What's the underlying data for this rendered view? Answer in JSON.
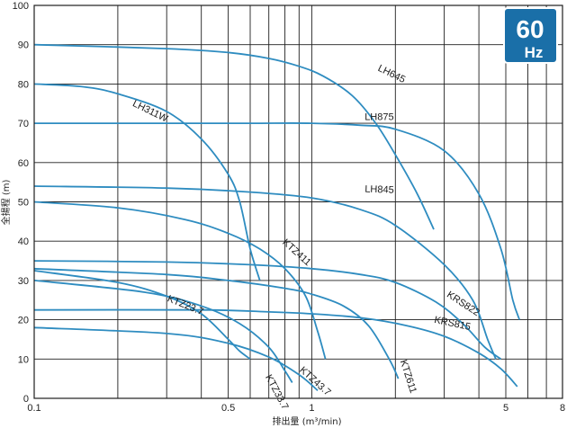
{
  "chart_data": {
    "type": "line",
    "title": "",
    "xlabel": "排出量 (m³/min)",
    "ylabel": "全揚程 (m)",
    "xscale": "log",
    "xlim": [
      0.1,
      8
    ],
    "ylim": [
      0,
      100
    ],
    "x_tick_labels": [
      {
        "value": 0.1,
        "label": "0.1"
      },
      {
        "value": 0.5,
        "label": "0.5"
      },
      {
        "value": 1,
        "label": "1"
      },
      {
        "value": 5,
        "label": "5"
      },
      {
        "value": 8,
        "label": "8"
      }
    ],
    "x_gridlines": [
      0.1,
      0.2,
      0.3,
      0.4,
      0.5,
      0.6,
      0.7,
      0.8,
      0.9,
      1,
      2,
      3,
      4,
      5,
      6,
      7,
      8
    ],
    "y_ticks": [
      0,
      10,
      20,
      30,
      40,
      50,
      60,
      70,
      80,
      90,
      100
    ],
    "grid": true,
    "badge": {
      "value": "60",
      "unit": "Hz"
    },
    "colors": {
      "curve": "#2e8cc0",
      "grid": "#1e1e1e",
      "badge": "#1a6fa8"
    },
    "series": [
      {
        "name": "LH645",
        "points": [
          [
            0.1,
            90
          ],
          [
            0.3,
            89
          ],
          [
            0.5,
            88
          ],
          [
            0.7,
            86.5
          ],
          [
            0.9,
            84.5
          ],
          [
            1.1,
            82
          ],
          [
            1.4,
            77
          ],
          [
            1.7,
            70
          ],
          [
            2.0,
            62
          ],
          [
            2.4,
            52
          ],
          [
            2.75,
            43
          ]
        ]
      },
      {
        "name": "LH311W",
        "points": [
          [
            0.1,
            80
          ],
          [
            0.15,
            79.3
          ],
          [
            0.2,
            77.5
          ],
          [
            0.3,
            73
          ],
          [
            0.4,
            66
          ],
          [
            0.5,
            57
          ],
          [
            0.55,
            50
          ],
          [
            0.6,
            38
          ],
          [
            0.65,
            30
          ]
        ]
      },
      {
        "name": "LH875",
        "points": [
          [
            0.1,
            70
          ],
          [
            0.3,
            70
          ],
          [
            0.6,
            70
          ],
          [
            1.0,
            70
          ],
          [
            1.5,
            69.5
          ],
          [
            2,
            68.5
          ],
          [
            3,
            63
          ],
          [
            4,
            52
          ],
          [
            4.8,
            38
          ],
          [
            5.3,
            25
          ],
          [
            5.6,
            20
          ]
        ]
      },
      {
        "name": "LH845",
        "points": [
          [
            0.1,
            54
          ],
          [
            0.3,
            53.5
          ],
          [
            0.6,
            52.5
          ],
          [
            1,
            51
          ],
          [
            1.5,
            48
          ],
          [
            2,
            44
          ],
          [
            3,
            34
          ],
          [
            3.8,
            25
          ],
          [
            4.3,
            15
          ],
          [
            4.6,
            10
          ]
        ]
      },
      {
        "name": "KTZ411",
        "points": [
          [
            0.1,
            50
          ],
          [
            0.2,
            48.5
          ],
          [
            0.35,
            45.5
          ],
          [
            0.5,
            42
          ],
          [
            0.65,
            38
          ],
          [
            0.8,
            33
          ],
          [
            0.95,
            26
          ],
          [
            1.05,
            17
          ],
          [
            1.12,
            10
          ]
        ]
      },
      {
        "name": "KRS822",
        "points": [
          [
            0.1,
            35
          ],
          [
            0.3,
            34.7
          ],
          [
            0.6,
            34
          ],
          [
            1,
            33
          ],
          [
            1.5,
            31.5
          ],
          [
            2,
            29.5
          ],
          [
            2.8,
            24.5
          ],
          [
            3.5,
            19
          ],
          [
            4.2,
            13
          ],
          [
            4.8,
            10
          ]
        ]
      },
      {
        "name": "KRS815",
        "points": [
          [
            0.1,
            22.5
          ],
          [
            0.4,
            22.5
          ],
          [
            0.7,
            22
          ],
          [
            1.0,
            21.5
          ],
          [
            1.5,
            20.5
          ],
          [
            2.2,
            18.5
          ],
          [
            3,
            15.8
          ],
          [
            4,
            11.5
          ],
          [
            4.8,
            7.5
          ],
          [
            5.5,
            3
          ]
        ]
      },
      {
        "name": "KTZ611",
        "points": [
          [
            0.1,
            33
          ],
          [
            0.3,
            31.5
          ],
          [
            0.5,
            30
          ],
          [
            0.8,
            28
          ],
          [
            1.0,
            26.5
          ],
          [
            1.3,
            23.5
          ],
          [
            1.6,
            18.5
          ],
          [
            1.9,
            10
          ],
          [
            2.05,
            5
          ]
        ]
      },
      {
        "name": "KTZ23.7",
        "points": [
          [
            0.1,
            32.5
          ],
          [
            0.2,
            29.5
          ],
          [
            0.3,
            26
          ],
          [
            0.4,
            21.5
          ],
          [
            0.5,
            15
          ],
          [
            0.55,
            12
          ],
          [
            0.6,
            10
          ]
        ]
      },
      {
        "name": "KTZ33.7",
        "points": [
          [
            0.1,
            30
          ],
          [
            0.25,
            27
          ],
          [
            0.4,
            23.5
          ],
          [
            0.55,
            19
          ],
          [
            0.7,
            13
          ],
          [
            0.8,
            7
          ],
          [
            0.85,
            4
          ]
        ]
      },
      {
        "name": "KTZ43.7",
        "points": [
          [
            0.1,
            18
          ],
          [
            0.3,
            16.5
          ],
          [
            0.5,
            14
          ],
          [
            0.7,
            10.5
          ],
          [
            0.9,
            6
          ],
          [
            1.05,
            2
          ]
        ]
      }
    ]
  }
}
